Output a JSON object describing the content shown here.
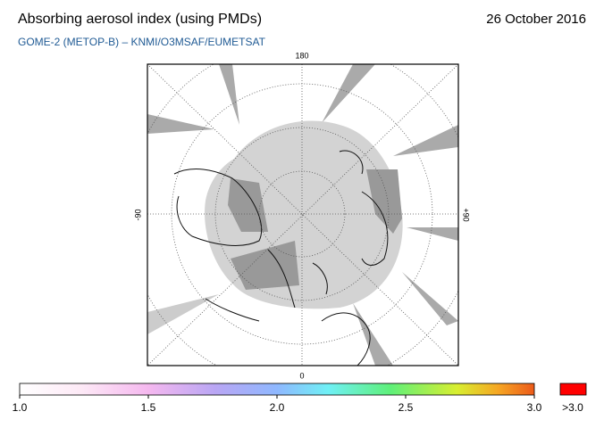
{
  "header": {
    "title": "Absorbing aerosol index (using PMDs)",
    "date": "26 October 2016",
    "source": "GOME-2 (METOP-B)  –  KNMI/O3MSAF/EUMETSAT"
  },
  "map": {
    "label_top": "180",
    "label_bottom": "0",
    "label_left": "-90",
    "label_right": "+90"
  },
  "colorbar": {
    "range": [
      1,
      3
    ],
    "ticks": [
      {
        "value": 1,
        "label": "1.0"
      },
      {
        "value": 1.5,
        "label": "1.5"
      },
      {
        "value": 2,
        "label": "2.0"
      },
      {
        "value": 2.5,
        "label": "2.5"
      },
      {
        "value": 3,
        "label": "3.0"
      }
    ],
    "over_label": ">3.0"
  }
}
